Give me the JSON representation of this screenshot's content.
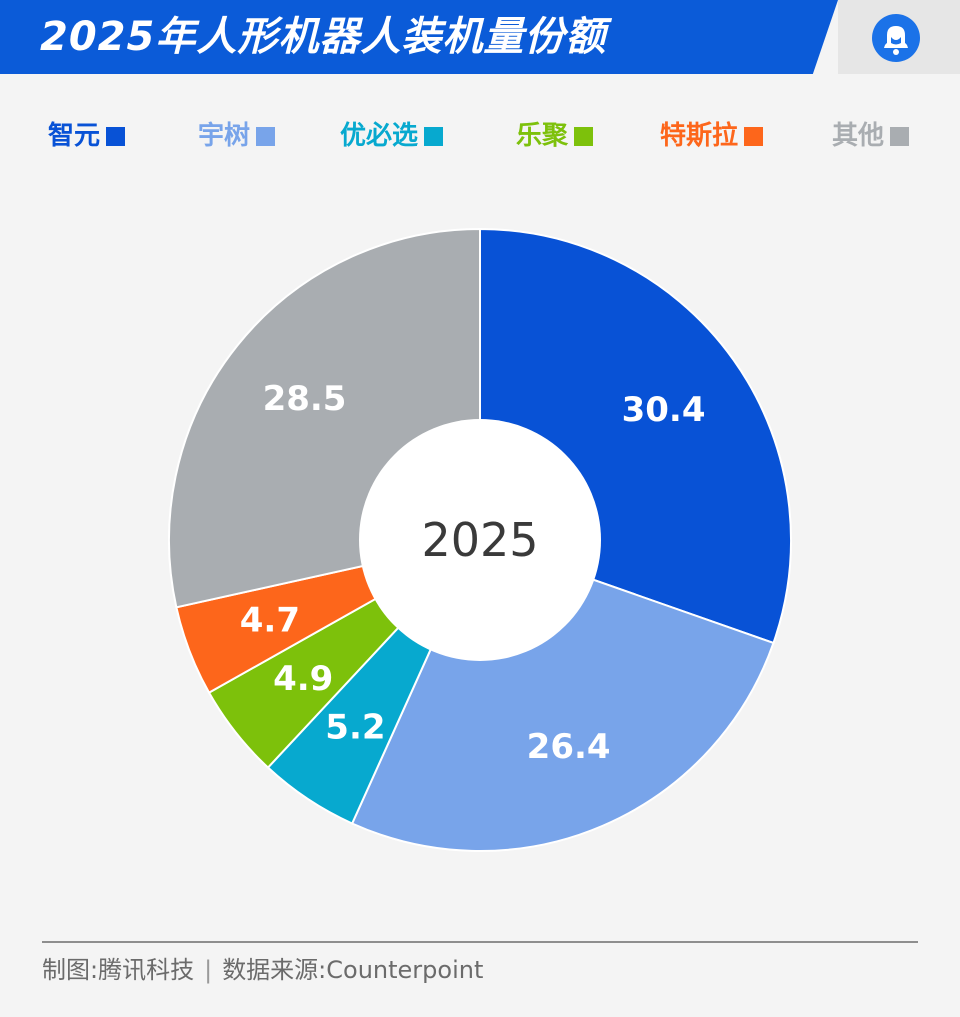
{
  "header": {
    "title": "2025年人形机器人装机量份额",
    "logo_icon": "tencent-news-bell-icon"
  },
  "colors": {
    "brand": "#0b5bd8",
    "background": "#f4f4f4"
  },
  "chart_data": {
    "type": "pie",
    "variant": "donut",
    "center_label": "2025",
    "legend_position": "top",
    "unit": "%",
    "categories": [
      "智元",
      "宇树",
      "优必选",
      "乐聚",
      "特斯拉",
      "其他"
    ],
    "values": [
      30.4,
      26.4,
      5.2,
      4.9,
      4.7,
      28.5
    ],
    "value_labels": [
      "30.4",
      "26.4",
      "5.2",
      "4.9",
      "4.7",
      "28.5"
    ],
    "colors": [
      "#0852d6",
      "#78a4ea",
      "#07a9cf",
      "#7dc10b",
      "#fd661b",
      "#a9adb1"
    ]
  },
  "footer": {
    "credit": "制图:腾讯科技",
    "source": "数据来源:Counterpoint"
  }
}
